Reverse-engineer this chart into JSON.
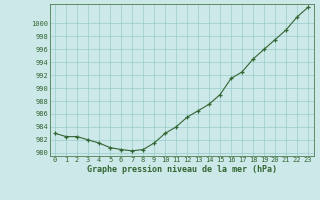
{
  "x": [
    0,
    1,
    2,
    3,
    4,
    5,
    6,
    7,
    8,
    9,
    10,
    11,
    12,
    13,
    14,
    15,
    16,
    17,
    18,
    19,
    20,
    21,
    22,
    23
  ],
  "y": [
    983.0,
    982.5,
    982.5,
    982.0,
    981.5,
    980.8,
    980.5,
    980.3,
    980.5,
    981.5,
    983.0,
    984.0,
    985.5,
    986.5,
    987.5,
    989.0,
    991.5,
    992.5,
    994.5,
    996.0,
    997.5,
    999.0,
    1001.0,
    1002.5
  ],
  "line_color": "#336633",
  "marker": "+",
  "bg_color": "#cce8e8",
  "grid_color": "#99cccc",
  "ylabel_ticks": [
    980,
    982,
    984,
    986,
    988,
    990,
    992,
    994,
    996,
    998,
    1000
  ],
  "xlabel": "Graphe pression niveau de la mer (hPa)",
  "ylim": [
    979.5,
    1003.0
  ],
  "xlim": [
    -0.5,
    23.5
  ],
  "axis_bg": "#cce8e8"
}
